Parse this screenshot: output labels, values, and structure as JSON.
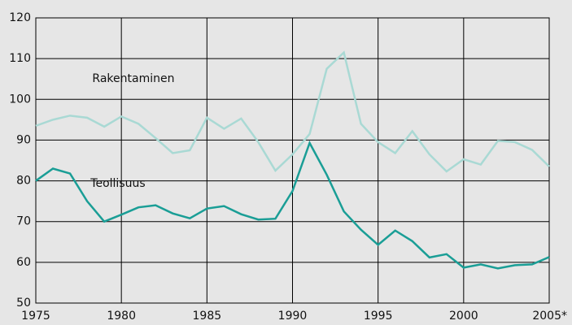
{
  "chart_data": {
    "type": "line",
    "x": [
      1975,
      1976,
      1977,
      1978,
      1979,
      1980,
      1981,
      1982,
      1983,
      1984,
      1985,
      1986,
      1987,
      1988,
      1989,
      1990,
      1991,
      1992,
      1993,
      1994,
      1995,
      1996,
      1997,
      1998,
      1999,
      2000,
      2001,
      2002,
      2003,
      2004,
      2005
    ],
    "series": [
      {
        "name": "Rakentaminen",
        "color": "#a9d9d4",
        "values": [
          93.5,
          95,
          96,
          95.5,
          93.3,
          95.8,
          94,
          90.5,
          86.8,
          87.5,
          95.5,
          92.8,
          95.3,
          89.5,
          82.5,
          86.5,
          91.5,
          107.5,
          111.5,
          94,
          89.5,
          86.8,
          92.2,
          86.5,
          82.3,
          85.3,
          84,
          89.8,
          89.5,
          87.6,
          83.5
        ]
      },
      {
        "name": "Teollisuus",
        "color": "#1a9e96",
        "values": [
          80,
          83,
          81.8,
          75,
          70,
          71.7,
          73.5,
          74,
          72,
          70.8,
          73.2,
          73.8,
          71.8,
          70.5,
          70.7,
          77.5,
          89.3,
          81.5,
          72.5,
          68,
          64.3,
          67.8,
          65.2,
          61.2,
          62,
          58.7,
          59.5,
          58.5,
          59.3,
          59.5,
          61.3
        ]
      }
    ],
    "xlim": [
      1975,
      2005
    ],
    "xticks": [
      1975,
      1980,
      1985,
      1990,
      1995,
      2000,
      {
        "value": 2005,
        "label": "2005*"
      }
    ],
    "ylim": [
      50,
      120
    ],
    "yticks": [
      50,
      60,
      70,
      80,
      90,
      100,
      110,
      120
    ],
    "grid": true
  }
}
